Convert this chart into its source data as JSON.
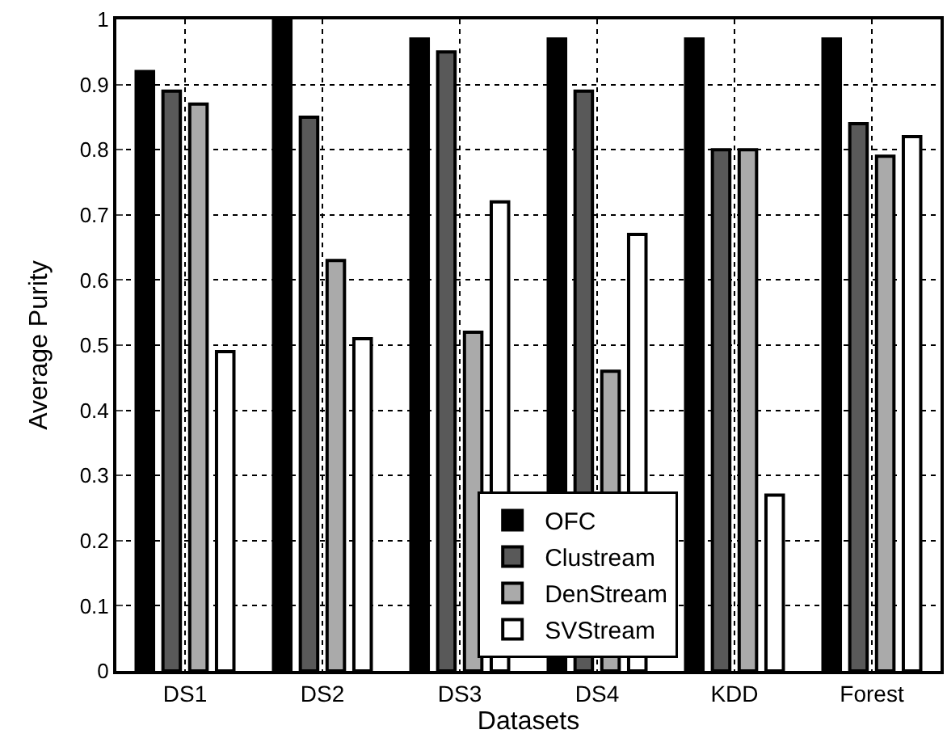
{
  "chart_data": {
    "type": "bar",
    "xlabel": "Datasets",
    "ylabel": "Average Purity",
    "categories": [
      "DS1",
      "DS2",
      "DS3",
      "DS4",
      "KDD",
      "Forest"
    ],
    "series": [
      {
        "name": "OFC",
        "color": "#000000",
        "values": [
          0.92,
          1.0,
          0.97,
          0.97,
          0.97,
          0.97
        ]
      },
      {
        "name": "Clustream",
        "color": "#595959",
        "values": [
          0.89,
          0.85,
          0.95,
          0.89,
          0.8,
          0.84
        ]
      },
      {
        "name": "DenStream",
        "color": "#aaaaaa",
        "values": [
          0.87,
          0.63,
          0.52,
          0.46,
          0.8,
          0.79
        ]
      },
      {
        "name": "SVStream",
        "color": "#ffffff",
        "values": [
          0.49,
          0.51,
          0.72,
          0.67,
          0.27,
          0.82
        ]
      }
    ],
    "ylim": [
      0,
      1
    ],
    "yticks": [
      0,
      0.1,
      0.2,
      0.3,
      0.4,
      0.5,
      0.6,
      0.7,
      0.8,
      0.9,
      1
    ],
    "grid": true,
    "legend": "bottom"
  }
}
